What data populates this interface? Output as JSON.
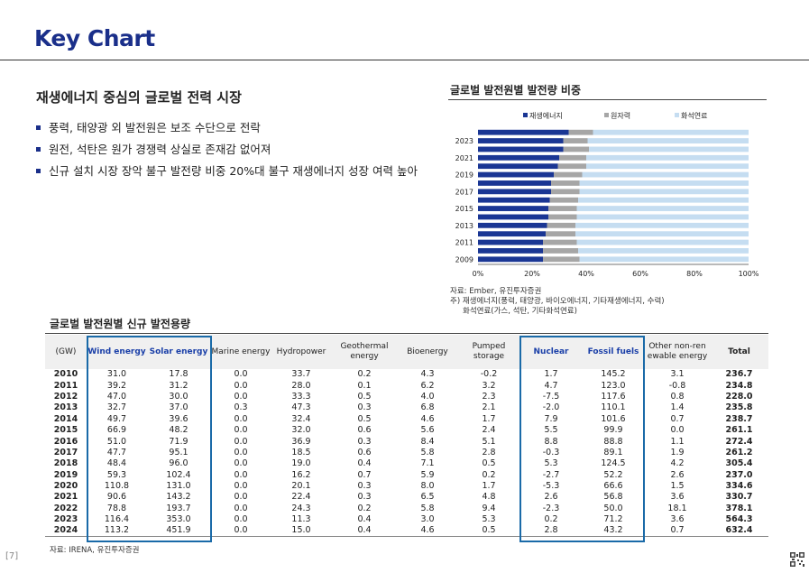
{
  "page": {
    "title": "Key Chart",
    "page_number": "[7]"
  },
  "summary": {
    "heading": "재생에너지 중심의 글로벌 전력 시장",
    "bullets": [
      "풍력, 태양광 외 발전원은 보조 수단으로 전락",
      "원전, 석탄은 원가 경쟁력 상실로 존재감 없어져",
      "신규 설치 시장 장악 불구 발전량 비중 20%대 불구 재생에너지 성장 여력 높아"
    ]
  },
  "chart_data": {
    "type": "bar",
    "orientation": "horizontal",
    "stacked": "percent",
    "title": "글로벌 발전원별 발전량 비중",
    "categories": [
      "2009",
      "2010",
      "2011",
      "2012",
      "2013",
      "2014",
      "2015",
      "2016",
      "2017",
      "2018",
      "2019",
      "2020",
      "2021",
      "2022",
      "2023",
      "2024"
    ],
    "y_tick_labels": [
      "2009",
      "2011",
      "2013",
      "2015",
      "2017",
      "2019",
      "2021",
      "2023"
    ],
    "x_tick_labels": [
      "0%",
      "20%",
      "40%",
      "60%",
      "80%",
      "100%"
    ],
    "xlim": [
      0,
      100
    ],
    "legend_position": "top",
    "series": [
      {
        "name": "재생에너지",
        "color": "#1a3694",
        "values": [
          24,
          24,
          24,
          25,
          25.5,
          26,
          26,
          26.5,
          27,
          27,
          28,
          29.5,
          30,
          31.5,
          31.5,
          33.5
        ]
      },
      {
        "name": "원자력",
        "color": "#a6a6a6",
        "values": [
          13.5,
          13,
          12.5,
          11,
          10.5,
          10.5,
          10.5,
          10.5,
          10.5,
          10.5,
          10.5,
          10.5,
          10,
          9.5,
          9,
          9
        ]
      },
      {
        "name": "화석연료",
        "color": "#c5ddf1",
        "values": [
          62.5,
          63,
          63.5,
          64,
          64,
          63.5,
          63.5,
          63,
          62.5,
          62.5,
          61.5,
          60,
          60,
          59,
          59.5,
          57.5
        ]
      }
    ],
    "notes": [
      "자료: Ember, 유진투자증권",
      "주) 재생에너지(풍력, 태양광, 바이오에너지, 기타재생에너지, 수력)",
      "화석연료(가스, 석탄, 기타화석연료)"
    ]
  },
  "capacity_table": {
    "title": "글로벌 발전원별 신규 발전용량",
    "headers": [
      "(GW)",
      "Wind energy",
      "Solar energy",
      "Marine energy",
      "Hydropower",
      "Geothermal energy",
      "Bioenergy",
      "Pumped storage",
      "Nuclear",
      "Fossil fuels",
      "Other non-renewable energy",
      "Total"
    ],
    "rows": [
      [
        "2010",
        "31.0",
        "17.8",
        "0.0",
        "33.7",
        "0.2",
        "4.3",
        "-0.2",
        "1.7",
        "145.2",
        "3.1",
        "236.7"
      ],
      [
        "2011",
        "39.2",
        "31.2",
        "0.0",
        "28.0",
        "0.1",
        "6.2",
        "3.2",
        "4.7",
        "123.0",
        "-0.8",
        "234.8"
      ],
      [
        "2012",
        "47.0",
        "30.0",
        "0.0",
        "33.3",
        "0.5",
        "4.0",
        "2.3",
        "-7.5",
        "117.6",
        "0.8",
        "228.0"
      ],
      [
        "2013",
        "32.7",
        "37.0",
        "0.3",
        "47.3",
        "0.3",
        "6.8",
        "2.1",
        "-2.0",
        "110.1",
        "1.4",
        "235.8"
      ],
      [
        "2014",
        "49.7",
        "39.6",
        "0.0",
        "32.4",
        "0.5",
        "4.6",
        "1.7",
        "7.9",
        "101.6",
        "0.7",
        "238.7"
      ],
      [
        "2015",
        "66.9",
        "48.2",
        "0.0",
        "32.0",
        "0.6",
        "5.6",
        "2.4",
        "5.5",
        "99.9",
        "0.0",
        "261.1"
      ],
      [
        "2016",
        "51.0",
        "71.9",
        "0.0",
        "36.9",
        "0.3",
        "8.4",
        "5.1",
        "8.8",
        "88.8",
        "1.1",
        "272.4"
      ],
      [
        "2017",
        "47.7",
        "95.1",
        "0.0",
        "18.5",
        "0.6",
        "5.8",
        "2.8",
        "-0.3",
        "89.1",
        "1.9",
        "261.2"
      ],
      [
        "2018",
        "48.4",
        "96.0",
        "0.0",
        "19.0",
        "0.4",
        "7.1",
        "0.5",
        "5.3",
        "124.5",
        "4.2",
        "305.4"
      ],
      [
        "2019",
        "59.3",
        "102.4",
        "0.0",
        "16.2",
        "0.7",
        "5.9",
        "0.2",
        "-2.7",
        "52.2",
        "2.6",
        "237.0"
      ],
      [
        "2020",
        "110.8",
        "131.0",
        "0.0",
        "20.1",
        "0.3",
        "8.0",
        "1.7",
        "-5.3",
        "66.6",
        "1.5",
        "334.6"
      ],
      [
        "2021",
        "90.6",
        "143.2",
        "0.0",
        "22.4",
        "0.3",
        "6.5",
        "4.8",
        "2.6",
        "56.8",
        "3.6",
        "330.7"
      ],
      [
        "2022",
        "78.8",
        "193.7",
        "0.0",
        "24.3",
        "0.2",
        "5.8",
        "9.4",
        "-2.3",
        "50.0",
        "18.1",
        "378.1"
      ],
      [
        "2023",
        "116.4",
        "353.0",
        "0.0",
        "11.3",
        "0.4",
        "3.0",
        "5.3",
        "0.2",
        "71.2",
        "3.6",
        "564.3"
      ],
      [
        "2024",
        "113.2",
        "451.9",
        "0.0",
        "15.0",
        "0.4",
        "4.6",
        "0.5",
        "2.8",
        "43.2",
        "0.7",
        "632.4"
      ]
    ],
    "source": "자료: IRENA, 유진투자증권"
  }
}
